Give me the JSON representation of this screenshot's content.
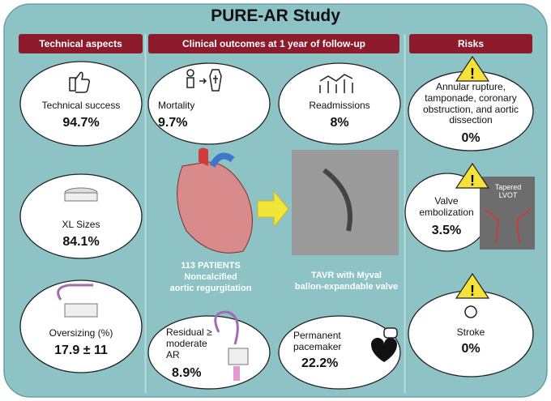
{
  "title": "PURE-AR Study",
  "columns": {
    "technical": "Technical aspects",
    "clinical": "Clinical outcomes at 1 year of follow-up",
    "risks": "Risks"
  },
  "technical": [
    {
      "label": "Technical success",
      "value": "94.7%"
    },
    {
      "label": "XL Sizes",
      "value": "84.1%"
    },
    {
      "label": "Oversizing (%)",
      "value": "17.9 ± 11"
    }
  ],
  "clinical": [
    {
      "label": "Mortality",
      "value": "9.7%"
    },
    {
      "label": "Readmissions",
      "value": "8%"
    },
    {
      "label": "Residual ≥ moderate AR",
      "value": "8.9%"
    },
    {
      "label": "Permanent pacemaker",
      "value": "22.2%"
    }
  ],
  "center": {
    "patients": [
      "113 PATIENTS",
      "Noncalcified",
      "aortic regurgitation"
    ],
    "procedure": [
      "TAVR with Myval",
      "ballon-expandable valve"
    ]
  },
  "risks": [
    {
      "label": "Annular rupture, tamponade, coronary obstruction, and aortic dissection",
      "value": "0%"
    },
    {
      "label": "Valve embolization",
      "value": "3.5%",
      "image_label": "Tapered LVOT"
    },
    {
      "label": "Stroke",
      "value": "0%"
    }
  ]
}
